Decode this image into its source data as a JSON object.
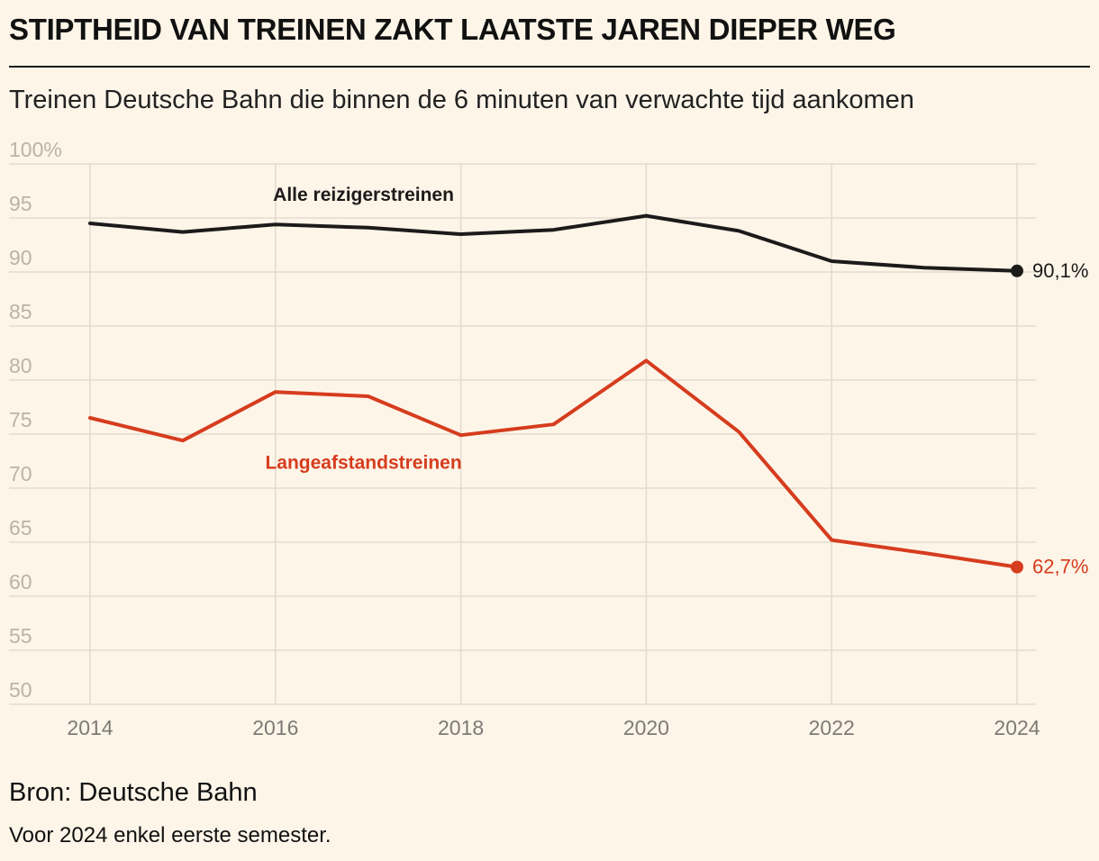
{
  "header": {
    "title": "STIPTHEID VAN TREINEN ZAKT LAATSTE JAREN DIEPER WEG",
    "subtitle": "Treinen Deutsche Bahn die binnen de 6 minuten van verwachte tijd aankomen"
  },
  "footer": {
    "source": "Bron: Deutsche Bahn",
    "note": "Voor 2024 enkel eerste semester."
  },
  "chart_data": {
    "type": "line",
    "title": "STIPTHEID VAN TREINEN ZAKT LAATSTE JAREN DIEPER WEG",
    "subtitle": "Treinen Deutsche Bahn die binnen de 6 minuten van verwachte tijd aankomen",
    "x": [
      2014,
      2015,
      2016,
      2017,
      2018,
      2019,
      2020,
      2021,
      2022,
      2023,
      2024
    ],
    "x_ticks": [
      "2014",
      "2016",
      "2018",
      "2020",
      "2022",
      "2024"
    ],
    "y_ticks": [
      "100%",
      "95",
      "90",
      "85",
      "80",
      "75",
      "70",
      "65",
      "60",
      "55",
      "50"
    ],
    "ylim": [
      50,
      100
    ],
    "xlim": [
      2014,
      2024
    ],
    "grid": true,
    "series": [
      {
        "name": "Alle reizigerstreinen",
        "color": "#1d1a1a",
        "values": [
          94.5,
          93.7,
          94.4,
          94.1,
          93.5,
          93.9,
          95.2,
          93.8,
          91.0,
          90.4,
          90.1
        ],
        "end_label": "90,1%",
        "label_anchor_x": 2016.95,
        "label_anchor_y": 96.6
      },
      {
        "name": "Langeafstandstreinen",
        "color": "#d63c1e",
        "values": [
          76.5,
          74.4,
          78.9,
          78.5,
          74.9,
          75.9,
          81.8,
          75.2,
          65.2,
          64.0,
          62.7
        ],
        "end_label": "62,7%",
        "label_anchor_x": 2016.95,
        "label_anchor_y": 71.8
      }
    ]
  }
}
